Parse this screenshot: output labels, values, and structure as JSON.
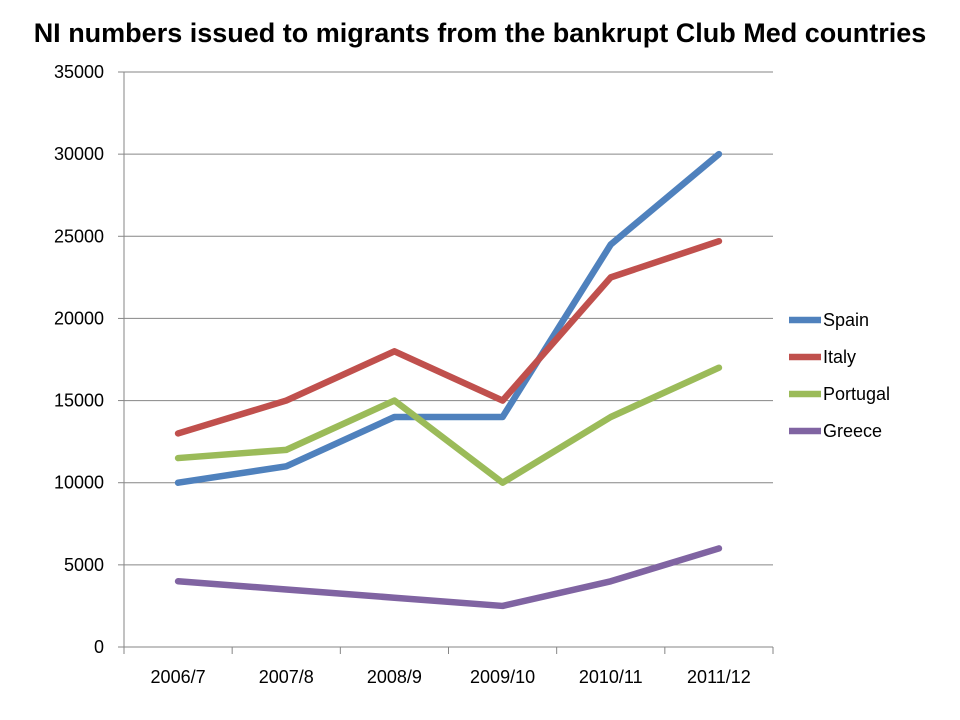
{
  "chart_data": {
    "type": "line",
    "title": "NI  numbers issued to migrants from the bankrupt Club Med countries",
    "categories": [
      "2006/7",
      "2007/8",
      "2008/9",
      "2009/10",
      "2010/11",
      "2011/12"
    ],
    "ylim": [
      0,
      35000
    ],
    "yticks": [
      0,
      5000,
      10000,
      15000,
      20000,
      25000,
      30000,
      35000
    ],
    "grid": true,
    "legend_position": "right",
    "series": [
      {
        "name": "Spain",
        "color": "#4F81BD",
        "values": [
          10000,
          11000,
          14000,
          14000,
          24500,
          30000
        ]
      },
      {
        "name": "Italy",
        "color": "#C0504D",
        "values": [
          13000,
          15000,
          18000,
          15000,
          22500,
          24700
        ]
      },
      {
        "name": "Portugal",
        "color": "#9BBB59",
        "values": [
          11500,
          12000,
          15000,
          10000,
          14000,
          17000
        ]
      },
      {
        "name": "Greece",
        "color": "#8064A2",
        "values": [
          4000,
          3500,
          3000,
          2500,
          4000,
          6000
        ]
      }
    ]
  }
}
